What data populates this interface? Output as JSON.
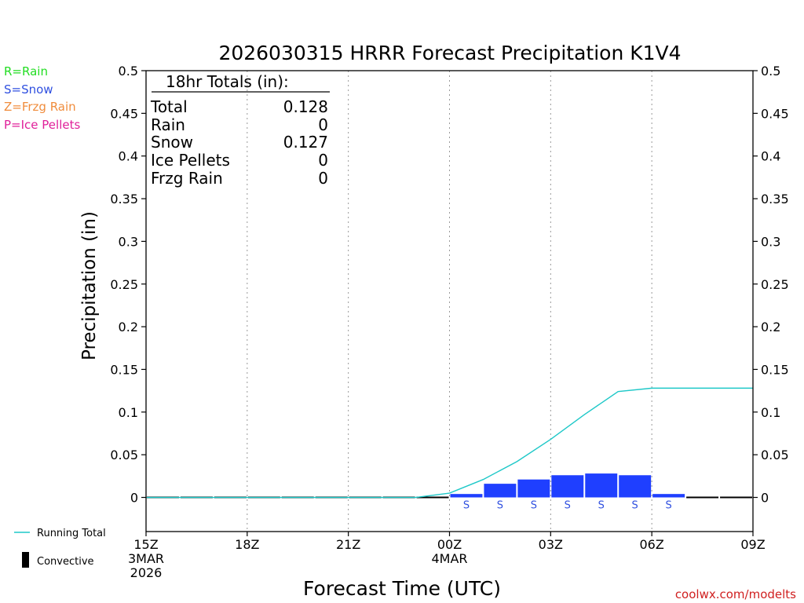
{
  "chart_data": {
    "type": "bar",
    "title": "2026030315 HRRR Forecast Precipitation K1V4",
    "xlabel": "Forecast Time (UTC)",
    "ylabel": "Precipitation (in)",
    "ylim": [
      -0.04,
      0.5
    ],
    "xlim_hours": [
      0,
      18
    ],
    "y_ticks": [
      {
        "v": 0.5,
        "label": "0.5"
      },
      {
        "v": 0.45,
        "label": "0.45"
      },
      {
        "v": 0.4,
        "label": "0.4"
      },
      {
        "v": 0.35,
        "label": "0.35"
      },
      {
        "v": 0.3,
        "label": "0.3"
      },
      {
        "v": 0.25,
        "label": "0.25"
      },
      {
        "v": 0.2,
        "label": "0.2"
      },
      {
        "v": 0.15,
        "label": "0.15"
      },
      {
        "v": 0.1,
        "label": "0.1"
      },
      {
        "v": 0.05,
        "label": "0.05"
      },
      {
        "v": 0,
        "label": "0"
      }
    ],
    "x_ticks": [
      {
        "h": 0,
        "lines": [
          "15Z",
          "3MAR",
          "2026"
        ]
      },
      {
        "h": 3,
        "lines": [
          "18Z"
        ]
      },
      {
        "h": 6,
        "lines": [
          "21Z"
        ]
      },
      {
        "h": 9,
        "lines": [
          "00Z",
          "4MAR"
        ]
      },
      {
        "h": 12,
        "lines": [
          "03Z"
        ]
      },
      {
        "h": 15,
        "lines": [
          "06Z"
        ]
      },
      {
        "h": 18,
        "lines": [
          "09Z"
        ]
      }
    ],
    "grid_hours": [
      3,
      6,
      9,
      12,
      15
    ],
    "hourly_precip": {
      "hours": [
        1,
        2,
        3,
        4,
        5,
        6,
        7,
        8,
        9,
        10,
        11,
        12,
        13,
        14,
        15,
        16,
        17,
        18
      ],
      "values": [
        0,
        0,
        0,
        0,
        0,
        0,
        0,
        0,
        0,
        0.004,
        0.016,
        0.021,
        0.026,
        0.028,
        0.026,
        0.004,
        0,
        0
      ],
      "color": "#1f3fff"
    },
    "running_total": {
      "name": "Running Total",
      "hours": [
        1,
        2,
        3,
        4,
        5,
        6,
        7,
        8,
        9,
        10,
        11,
        12,
        13,
        14,
        15,
        16,
        17,
        18
      ],
      "values": [
        0,
        0,
        0,
        0,
        0,
        0,
        0,
        0,
        0,
        0.005,
        0.021,
        0.042,
        0.068,
        0.097,
        0.124,
        0.128,
        0.128,
        0.128
      ],
      "color": "#1ec8c8"
    },
    "ptype_markers": {
      "hours": [
        10,
        11,
        12,
        13,
        14,
        15,
        16
      ],
      "symbols": [
        "S",
        "S",
        "S",
        "S",
        "S",
        "S",
        "S"
      ],
      "color": "#3050e0"
    },
    "totals_box": {
      "header": "18hr Totals (in):",
      "rows": [
        {
          "label": "Total",
          "value": "0.128"
        },
        {
          "label": "Rain",
          "value": "0"
        },
        {
          "label": "Snow",
          "value": "0.127"
        },
        {
          "label": "Ice Pellets",
          "value": "0"
        },
        {
          "label": "Frzg Rain",
          "value": "0"
        }
      ]
    },
    "ptype_legend": [
      {
        "text": "R=Rain",
        "color": "#22dd22"
      },
      {
        "text": "S=Snow",
        "color": "#3050e0"
      },
      {
        "text": "Z=Frzg Rain",
        "color": "#f08c3c"
      },
      {
        "text": "P=Ice Pellets",
        "color": "#e0209a"
      }
    ],
    "series_legend": {
      "running_total": "Running Total",
      "convective": "Convective"
    },
    "credit": "coolwx.com/modelts",
    "credit_color": "#d02020"
  }
}
